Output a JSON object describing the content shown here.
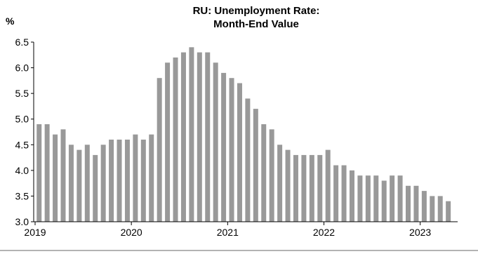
{
  "chart_data": {
    "type": "bar",
    "title": "RU: Unemployment Rate:",
    "subtitle": "Month-End Value",
    "ylabel": "%",
    "xlabel": "",
    "ylim": [
      3.0,
      6.5
    ],
    "yticks": [
      "3.0",
      "3.5",
      "4.0",
      "4.5",
      "5.0",
      "5.5",
      "6.0",
      "6.5"
    ],
    "xticks": [
      "2019",
      "2020",
      "2021",
      "2022",
      "2023"
    ],
    "grid": false,
    "legend": "none",
    "bar_color": "#999999",
    "categories": [
      "2019-01",
      "2019-02",
      "2019-03",
      "2019-04",
      "2019-05",
      "2019-06",
      "2019-07",
      "2019-08",
      "2019-09",
      "2019-10",
      "2019-11",
      "2019-12",
      "2020-01",
      "2020-02",
      "2020-03",
      "2020-04",
      "2020-05",
      "2020-06",
      "2020-07",
      "2020-08",
      "2020-09",
      "2020-10",
      "2020-11",
      "2020-12",
      "2021-01",
      "2021-02",
      "2021-03",
      "2021-04",
      "2021-05",
      "2021-06",
      "2021-07",
      "2021-08",
      "2021-09",
      "2021-10",
      "2021-11",
      "2021-12",
      "2022-01",
      "2022-02",
      "2022-03",
      "2022-04",
      "2022-05",
      "2022-06",
      "2022-07",
      "2022-08",
      "2022-09",
      "2022-10",
      "2022-11",
      "2022-12",
      "2023-01",
      "2023-02",
      "2023-03",
      "2023-04"
    ],
    "values": [
      4.9,
      4.9,
      4.7,
      4.8,
      4.5,
      4.4,
      4.5,
      4.3,
      4.5,
      4.6,
      4.6,
      4.6,
      4.7,
      4.6,
      4.7,
      5.8,
      6.1,
      6.2,
      6.3,
      6.4,
      6.3,
      6.3,
      6.1,
      5.9,
      5.8,
      5.7,
      5.4,
      5.2,
      4.9,
      4.8,
      4.5,
      4.4,
      4.3,
      4.3,
      4.3,
      4.3,
      4.4,
      4.1,
      4.1,
      4.0,
      3.9,
      3.9,
      3.9,
      3.8,
      3.9,
      3.9,
      3.7,
      3.7,
      3.6,
      3.5,
      3.5,
      3.4
    ]
  }
}
